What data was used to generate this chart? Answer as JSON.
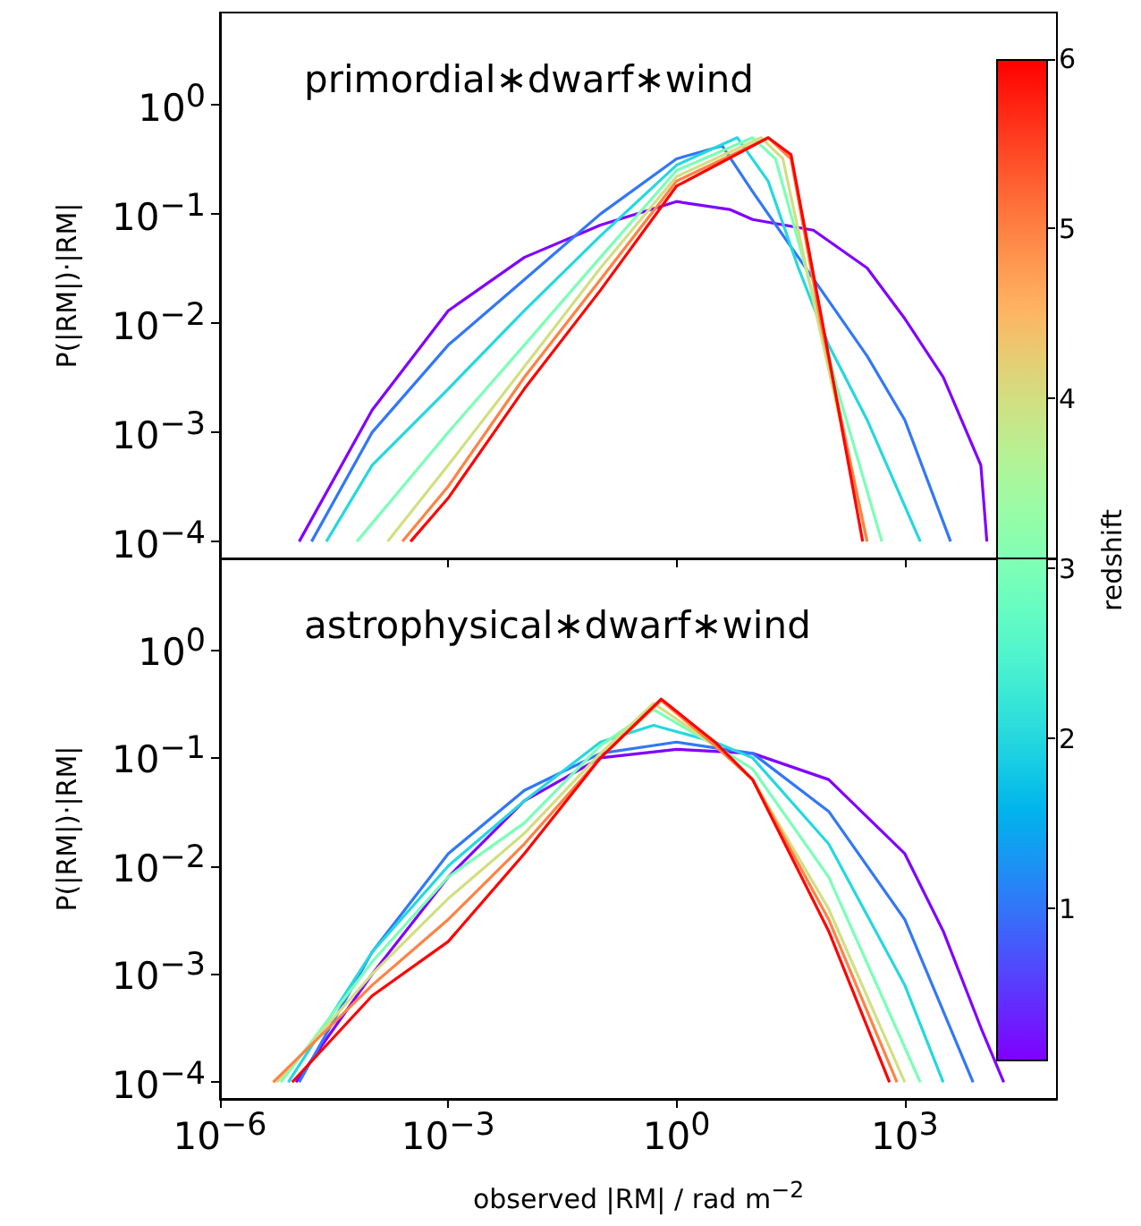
{
  "chart_data": [
    {
      "type": "line",
      "title": "primordial∗dwarf∗wind",
      "ylabel": "P(|RM|)·|RM|",
      "log": "xy",
      "marker": "none",
      "tick_labels": "y",
      "xlim": [
        1e-06,
        100000
      ],
      "xticks": [
        {
          "value": 1e-06,
          "label": null
        },
        {
          "value": 0.001,
          "label": null
        },
        {
          "value": 1,
          "label": null
        },
        {
          "value": 1000,
          "label": null
        }
      ],
      "ylim": [
        7e-05,
        7
      ],
      "yticks": [
        {
          "value": 0.0001,
          "label": "10$^{−4}$"
        },
        {
          "value": 0.001,
          "label": "10$^{−3}$"
        },
        {
          "value": 0.01,
          "label": "10$^{−2}$"
        },
        {
          "value": 0.1,
          "label": "10$^{−1}$"
        },
        {
          "value": 1,
          "label": "10$^{0}$"
        }
      ],
      "clabel": "redshift",
      "clim": [
        0.1,
        6
      ],
      "cticks": [
        1,
        2,
        3,
        4,
        5,
        6
      ],
      "series": [
        {
          "color": "#8000ff",
          "x": [
            1.1e-05,
            0.0001,
            0.001,
            0.01,
            0.1,
            1,
            5,
            10,
            63,
            320,
            1000,
            3200,
            10000,
            12000
          ],
          "values": [
            0.0001,
            0.0016,
            0.013,
            0.04,
            0.079,
            0.13,
            0.11,
            0.089,
            0.071,
            0.032,
            0.011,
            0.0032,
            0.0005,
            0.0001
          ]
        },
        {
          "color": "#3277f8",
          "x": [
            1.6e-05,
            0.0001,
            0.001,
            0.01,
            0.1,
            1,
            4,
            10,
            32,
            100,
            320,
            1000,
            4000
          ],
          "values": [
            0.0001,
            0.001,
            0.0063,
            0.025,
            0.1,
            0.32,
            0.42,
            0.16,
            0.05,
            0.016,
            0.005,
            0.0013,
            0.0001
          ]
        },
        {
          "color": "#25d8df",
          "x": [
            2.5e-05,
            0.0001,
            0.001,
            0.01,
            0.1,
            1,
            6.3,
            16,
            40,
            100,
            320,
            1600
          ],
          "values": [
            0.0001,
            0.0005,
            0.0025,
            0.013,
            0.063,
            0.28,
            0.5,
            0.2,
            0.032,
            0.0063,
            0.0013,
            0.0001
          ]
        },
        {
          "color": "#7bffb7",
          "x": [
            6.3e-05,
            0.001,
            0.01,
            0.1,
            1,
            10,
            20,
            50,
            130,
            500
          ],
          "values": [
            0.0001,
            0.001,
            0.0063,
            0.04,
            0.25,
            0.5,
            0.32,
            0.032,
            0.0025,
            0.0001
          ]
        },
        {
          "color": "#d2df82",
          "x": [
            0.00016,
            0.001,
            0.01,
            0.1,
            1,
            13,
            25,
            63,
            320
          ],
          "values": [
            0.0001,
            0.0005,
            0.004,
            0.032,
            0.22,
            0.5,
            0.32,
            0.016,
            0.0001
          ]
        },
        {
          "color": "#ff8243",
          "x": [
            0.00025,
            0.001,
            0.01,
            0.1,
            1,
            16,
            32,
            79,
            320
          ],
          "values": [
            0.0001,
            0.00032,
            0.0032,
            0.025,
            0.2,
            0.5,
            0.32,
            0.01,
            0.0001
          ]
        },
        {
          "color": "#ff0000",
          "x": [
            0.00032,
            0.001,
            0.01,
            0.1,
            1,
            16,
            32,
            100,
            280
          ],
          "values": [
            0.0001,
            0.00025,
            0.0025,
            0.02,
            0.18,
            0.5,
            0.35,
            0.005,
            0.0001
          ]
        }
      ]
    },
    {
      "type": "line",
      "title": "astrophysical∗dwarf∗wind",
      "ylabel": "P(|RM|)·|RM|",
      "xlabel": "observed |RM| / rad m$^{−2}$",
      "log": "xy",
      "marker": "none",
      "xlim": [
        1e-06,
        100000
      ],
      "xticks": [
        {
          "value": 1e-06,
          "label": "10$^{−6}$"
        },
        {
          "value": 0.001,
          "label": "10$^{−3}$"
        },
        {
          "value": 1,
          "label": "10$^{0}$"
        },
        {
          "value": 1000,
          "label": "10$^{3}$"
        }
      ],
      "ylim": [
        7e-05,
        7
      ],
      "yticks": [
        {
          "value": 0.0001,
          "label": "10$^{−4}$"
        },
        {
          "value": 0.001,
          "label": "10$^{−3}$"
        },
        {
          "value": 0.01,
          "label": "10$^{−2}$"
        },
        {
          "value": 0.1,
          "label": "10$^{−1}$"
        },
        {
          "value": 1,
          "label": "10$^{0}$"
        }
      ],
      "series": [
        {
          "color": "#8000ff",
          "x": [
            1e-05,
            0.0001,
            0.001,
            0.01,
            0.1,
            1,
            10,
            100,
            1000,
            3200,
            10000,
            20000
          ],
          "values": [
            0.0001,
            0.001,
            0.0079,
            0.04,
            0.1,
            0.12,
            0.11,
            0.063,
            0.013,
            0.0025,
            0.00032,
            0.0001
          ]
        },
        {
          "color": "#3277f8",
          "x": [
            1.1e-05,
            0.0001,
            0.001,
            0.01,
            0.1,
            1,
            10,
            100,
            1000,
            7900
          ],
          "values": [
            0.0001,
            0.0016,
            0.013,
            0.05,
            0.11,
            0.14,
            0.11,
            0.032,
            0.0032,
            0.0001
          ]
        },
        {
          "color": "#25d8df",
          "x": [
            7.9e-06,
            0.0001,
            0.001,
            0.01,
            0.1,
            0.5,
            3.2,
            10,
            100,
            1000,
            3200
          ],
          "values": [
            0.0001,
            0.0016,
            0.01,
            0.04,
            0.14,
            0.2,
            0.14,
            0.1,
            0.016,
            0.00079,
            0.0001
          ]
        },
        {
          "color": "#7bffb7",
          "x": [
            6.3e-06,
            0.0001,
            0.001,
            0.01,
            0.1,
            0.5,
            3.2,
            10,
            100,
            1600
          ],
          "values": [
            0.0001,
            0.0013,
            0.0079,
            0.025,
            0.13,
            0.28,
            0.13,
            0.079,
            0.0079,
            0.0001
          ]
        },
        {
          "color": "#d2df82",
          "x": [
            5.6e-06,
            0.0001,
            0.001,
            0.01,
            0.1,
            0.5,
            3.2,
            10,
            100,
            1000
          ],
          "values": [
            0.0001,
            0.001,
            0.005,
            0.02,
            0.11,
            0.32,
            0.13,
            0.063,
            0.004,
            0.0001
          ]
        },
        {
          "color": "#ff8243",
          "x": [
            5e-06,
            0.0001,
            0.001,
            0.01,
            0.1,
            0.63,
            3.2,
            10,
            100,
            790
          ],
          "values": [
            0.0001,
            0.00079,
            0.0032,
            0.016,
            0.1,
            0.34,
            0.13,
            0.063,
            0.0032,
            0.0001
          ]
        },
        {
          "color": "#ff0000",
          "x": [
            8.9e-06,
            0.0001,
            0.001,
            0.01,
            0.1,
            0.63,
            3.2,
            10,
            100,
            630
          ],
          "values": [
            0.0001,
            0.00063,
            0.002,
            0.013,
            0.1,
            0.35,
            0.14,
            0.063,
            0.0025,
            0.0001
          ]
        }
      ]
    }
  ]
}
